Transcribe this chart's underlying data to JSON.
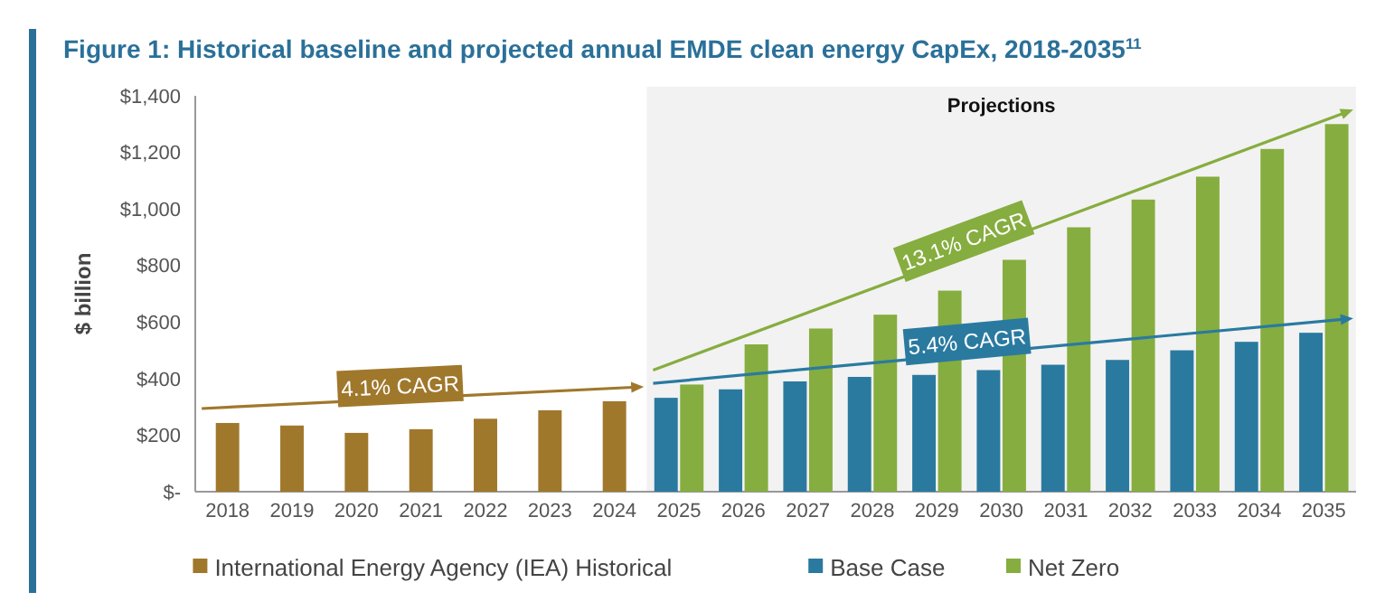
{
  "chart_data": {
    "type": "bar",
    "title": "Figure 1: Historical baseline and projected annual EMDE clean energy CapEx, 2018-2035$^{11}$",
    "ylabel": "$ billion",
    "categories": [
      "2018",
      "2019",
      "2020",
      "2021",
      "2022",
      "2023",
      "2024",
      "2025",
      "2026",
      "2027",
      "2028",
      "2029",
      "2030",
      "2031",
      "2032",
      "2033",
      "2034",
      "2035"
    ],
    "series": [
      {
        "name": "International Energy Agency (IEA) Historical",
        "color": "#a0782c",
        "values": [
          243,
          234,
          208,
          221,
          258,
          288,
          320,
          null,
          null,
          null,
          null,
          null,
          null,
          null,
          null,
          null,
          null,
          null
        ]
      },
      {
        "name": "Base Case",
        "color": "#2a7aa0",
        "values": [
          null,
          null,
          null,
          null,
          null,
          null,
          null,
          332,
          362,
          390,
          406,
          413,
          430,
          449,
          466,
          500,
          530,
          562
        ]
      },
      {
        "name": "Net Zero",
        "color": "#86ad3f",
        "values": [
          null,
          null,
          null,
          null,
          null,
          null,
          null,
          379,
          521,
          577,
          626,
          711,
          820,
          935,
          1033,
          1114,
          1212,
          1300
        ]
      }
    ],
    "annotations": [
      "4.1% CAGR",
      "5.4% CAGR",
      "13.1% CAGR"
    ],
    "bands": [
      {
        "axis": "x",
        "from": "2025",
        "to": "2035",
        "label": "Projections",
        "color": "#f2f2f2"
      }
    ],
    "ylim": [
      0,
      1400
    ],
    "yticks": [
      {
        "value": 0,
        "label": "$-"
      },
      {
        "value": 200,
        "label": "$200"
      },
      {
        "value": 400,
        "label": "$400"
      },
      {
        "value": 600,
        "label": "$600"
      },
      {
        "value": 800,
        "label": "$800"
      },
      {
        "value": 1000,
        "label": "$1,000"
      },
      {
        "value": 1200,
        "label": "$1,200"
      },
      {
        "value": 1400,
        "label": "$1,400"
      }
    ],
    "grid": false,
    "legend": "bottom"
  }
}
